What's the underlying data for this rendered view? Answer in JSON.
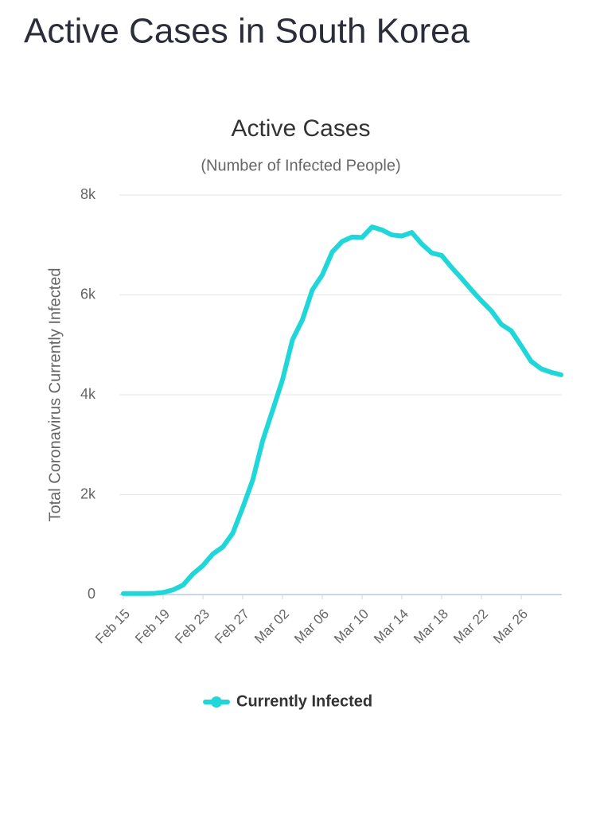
{
  "header": {
    "title": "Active Cases in South Korea"
  },
  "chart_data": {
    "type": "line",
    "title": "Active Cases",
    "subtitle": "(Number of Infected People)",
    "y_label": "Total Coronavirus Currently Infected",
    "categories": [
      "Feb 15",
      null,
      null,
      null,
      "Feb 19",
      null,
      null,
      null,
      "Feb 23",
      null,
      null,
      null,
      "Feb 27",
      null,
      null,
      null,
      "Mar 02",
      null,
      null,
      null,
      "Mar 06",
      null,
      null,
      null,
      "Mar 10",
      null,
      null,
      null,
      "Mar 14",
      null,
      null,
      null,
      "Mar 18",
      null,
      null,
      null,
      "Mar 22",
      null,
      null,
      null,
      "Mar 26",
      null,
      null,
      null,
      null
    ],
    "series": [
      {
        "name": "Currently Infected",
        "color": "#1fd6d8",
        "values": [
          19,
          19,
          20,
          21,
          42,
          94,
          189,
          414,
          580,
          813,
          952,
          1228,
          1740,
          2290,
          3076,
          3684,
          4300,
          5100,
          5500,
          6100,
          6400,
          6860,
          7070,
          7160,
          7150,
          7360,
          7300,
          7200,
          7180,
          7250,
          7020,
          6840,
          6790,
          6550,
          6330,
          6100,
          5880,
          5680,
          5410,
          5280,
          4980,
          4670,
          4520,
          4450,
          4400
        ]
      }
    ],
    "ylim": [
      0,
      8000
    ],
    "yticks": [
      0,
      {
        "value": 2000,
        "label": "2k"
      },
      {
        "value": 4000,
        "label": "4k"
      },
      {
        "value": 6000,
        "label": "6k"
      },
      {
        "value": 8000,
        "label": "8k"
      }
    ],
    "grid": true,
    "legend": "bottom"
  }
}
